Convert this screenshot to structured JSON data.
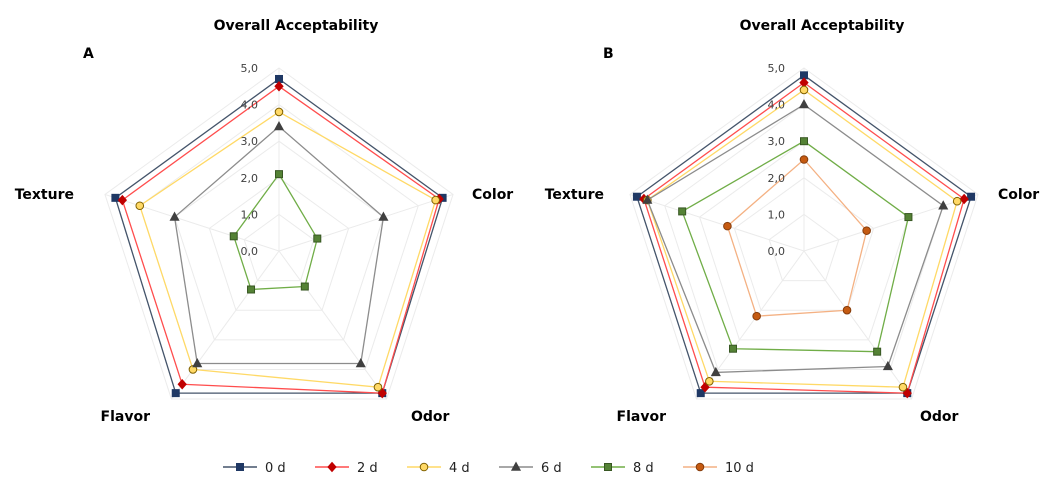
{
  "chart_data": [
    {
      "type": "radar",
      "panel_label": "A",
      "axes": [
        "Overall Acceptability",
        "Color",
        "Odor",
        "Flavor",
        "Texture"
      ],
      "r_ticks": [
        "0,0",
        "1,0",
        "2,0",
        "3,0",
        "4,0",
        "5,0"
      ],
      "rlim": [
        0,
        5
      ],
      "series": [
        {
          "name": "0 d",
          "values": [
            4.7,
            4.7,
            4.8,
            4.8,
            4.7
          ]
        },
        {
          "name": "2 d",
          "values": [
            4.5,
            4.6,
            4.8,
            4.5,
            4.5
          ]
        },
        {
          "name": "4 d",
          "values": [
            3.8,
            4.5,
            4.6,
            4.0,
            4.0
          ]
        },
        {
          "name": "6 d",
          "values": [
            3.4,
            3.0,
            3.8,
            3.8,
            3.0
          ]
        },
        {
          "name": "8 d",
          "values": [
            2.1,
            1.1,
            1.2,
            1.3,
            1.3
          ]
        }
      ]
    },
    {
      "type": "radar",
      "panel_label": "B",
      "axes": [
        "Overall Acceptability",
        "Color",
        "Odor",
        "Flavor",
        "Texture"
      ],
      "r_ticks": [
        "0,0",
        "1,0",
        "2,0",
        "3,0",
        "4,0",
        "5,0"
      ],
      "rlim": [
        0,
        5
      ],
      "series": [
        {
          "name": "0 d",
          "values": [
            4.8,
            4.8,
            4.8,
            4.8,
            4.8
          ]
        },
        {
          "name": "2 d",
          "values": [
            4.6,
            4.6,
            4.8,
            4.6,
            4.6
          ]
        },
        {
          "name": "4 d",
          "values": [
            4.4,
            4.4,
            4.6,
            4.4,
            4.5
          ]
        },
        {
          "name": "6 d",
          "values": [
            4.0,
            4.0,
            3.9,
            4.1,
            4.5
          ]
        },
        {
          "name": "8 d",
          "values": [
            3.0,
            3.0,
            3.4,
            3.3,
            3.5
          ]
        },
        {
          "name": "10 d",
          "values": [
            2.5,
            1.8,
            2.0,
            2.2,
            2.2
          ]
        }
      ]
    }
  ],
  "legend": [
    "0 d",
    "2 d",
    "4 d",
    "6 d",
    "8 d",
    "10 d"
  ],
  "colors": {
    "0 d": {
      "line": "#44546a",
      "marker": "#1f3864",
      "stroke": "#1f3864",
      "shape": "square"
    },
    "2 d": {
      "line": "#ff4d4d",
      "marker": "#c00000",
      "stroke": "#c00000",
      "shape": "diamond"
    },
    "4 d": {
      "line": "#ffd966",
      "marker": "#ffd966",
      "stroke": "#7f6000",
      "shape": "circle"
    },
    "6 d": {
      "line": "#8c8c8c",
      "marker": "#404040",
      "stroke": "#404040",
      "shape": "triangle"
    },
    "8 d": {
      "line": "#70ad47",
      "marker": "#548235",
      "stroke": "#385723",
      "shape": "square"
    },
    "10 d": {
      "line": "#f4b183",
      "marker": "#c55a11",
      "stroke": "#843c0c",
      "shape": "circle"
    },
    "grid": "#d9d9d9",
    "web": "#ebebeb"
  }
}
